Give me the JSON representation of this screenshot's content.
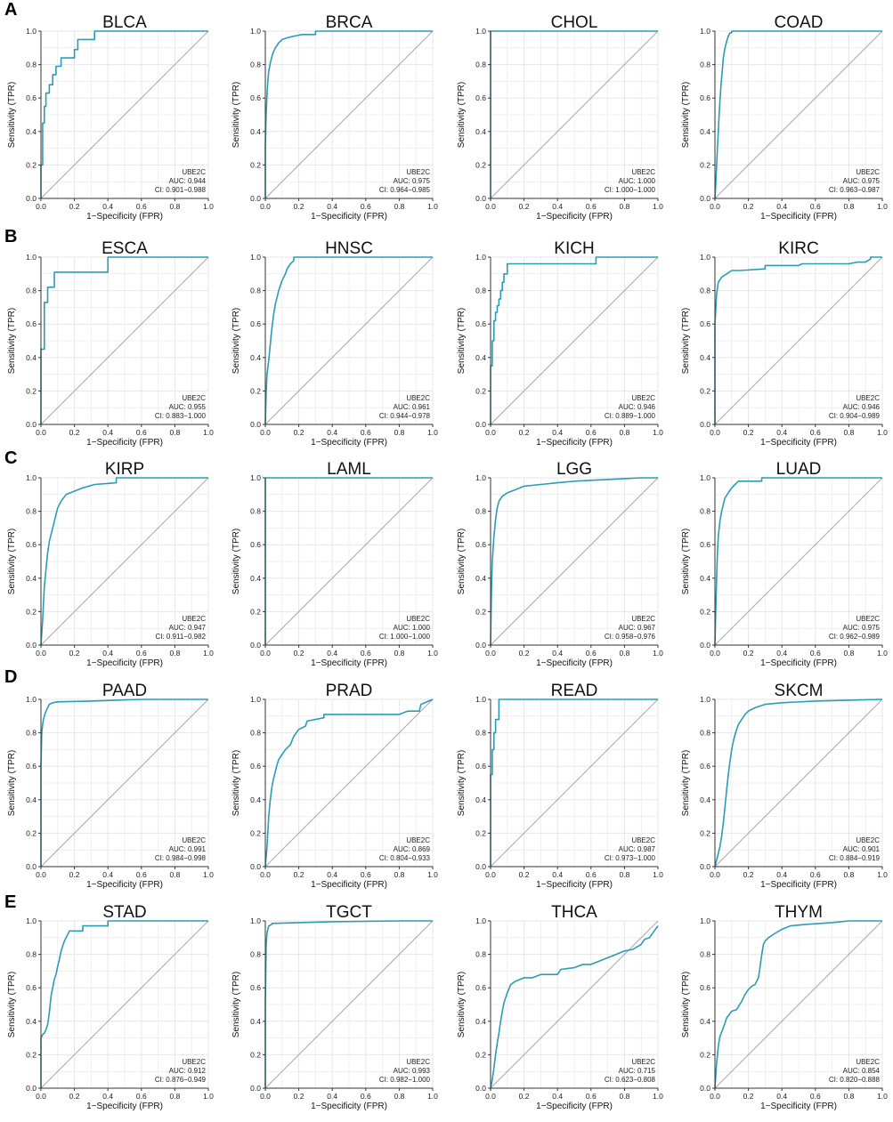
{
  "figure": {
    "row_letters": [
      "A",
      "B",
      "C",
      "D",
      "E"
    ]
  },
  "axis_labels": {
    "xlabel": "1−Specificity (FPR)",
    "ylabel": "Sensitivity (TPR)",
    "ticks": [
      "0.0",
      "0.2",
      "0.4",
      "0.6",
      "0.8",
      "1.0"
    ]
  },
  "colors": {
    "roc": "#2a9db3",
    "diagonal": "#a8a8a8",
    "grid": "#e6e6e6",
    "axis": "#333333"
  },
  "chart_data": [
    {
      "type": "line",
      "title": "BLCA",
      "gene": "UBE2C",
      "auc": "AUC: 0.944",
      "ci": "CI: 0.901−0.988",
      "xlim": [
        0,
        1
      ],
      "ylim": [
        0,
        1
      ],
      "x": [
        0,
        0,
        0.01,
        0.01,
        0.02,
        0.02,
        0.03,
        0.03,
        0.05,
        0.05,
        0.07,
        0.07,
        0.09,
        0.09,
        0.12,
        0.12,
        0.16,
        0.16,
        0.2,
        0.2,
        0.22,
        0.22,
        0.28,
        0.28,
        0.32,
        0.32,
        1
      ],
      "y": [
        0,
        0.2,
        0.2,
        0.45,
        0.45,
        0.55,
        0.55,
        0.63,
        0.63,
        0.68,
        0.68,
        0.74,
        0.74,
        0.79,
        0.79,
        0.84,
        0.84,
        0.84,
        0.84,
        0.89,
        0.89,
        0.95,
        0.95,
        0.95,
        0.95,
        1,
        1
      ]
    },
    {
      "type": "line",
      "title": "BRCA",
      "gene": "UBE2C",
      "auc": "AUC: 0.975",
      "ci": "CI: 0.964−0.985",
      "xlim": [
        0,
        1
      ],
      "ylim": [
        0,
        1
      ],
      "x": [
        0,
        0,
        0.005,
        0.01,
        0.015,
        0.02,
        0.03,
        0.04,
        0.05,
        0.06,
        0.08,
        0.1,
        0.13,
        0.17,
        0.22,
        0.3,
        0.3,
        1
      ],
      "y": [
        0,
        0.3,
        0.5,
        0.62,
        0.7,
        0.76,
        0.81,
        0.85,
        0.88,
        0.9,
        0.93,
        0.95,
        0.96,
        0.97,
        0.98,
        0.98,
        1,
        1
      ]
    },
    {
      "type": "line",
      "title": "CHOL",
      "gene": "UBE2C",
      "auc": "AUC: 1.000",
      "ci": "CI: 1.000−1.000",
      "xlim": [
        0,
        1
      ],
      "ylim": [
        0,
        1
      ],
      "x": [
        0,
        0,
        1
      ],
      "y": [
        0,
        1,
        1
      ]
    },
    {
      "type": "line",
      "title": "COAD",
      "gene": "UBE2C",
      "auc": "AUC: 0.975",
      "ci": "CI: 0.963−0.987",
      "xlim": [
        0,
        1
      ],
      "ylim": [
        0,
        1
      ],
      "x": [
        0,
        0.005,
        0.01,
        0.015,
        0.02,
        0.025,
        0.03,
        0.035,
        0.04,
        0.045,
        0.05,
        0.06,
        0.07,
        0.08,
        0.09,
        0.1,
        0.1,
        1
      ],
      "y": [
        0,
        0.08,
        0.2,
        0.3,
        0.4,
        0.5,
        0.58,
        0.66,
        0.72,
        0.78,
        0.84,
        0.9,
        0.94,
        0.97,
        0.99,
        0.99,
        1,
        1
      ]
    },
    {
      "type": "line",
      "title": "ESCA",
      "gene": "UBE2C",
      "auc": "AUC: 0.955",
      "ci": "CI: 0.883−1.000",
      "xlim": [
        0,
        1
      ],
      "ylim": [
        0,
        1
      ],
      "x": [
        0,
        0,
        0.02,
        0.02,
        0.04,
        0.04,
        0.08,
        0.08,
        0.4,
        0.4,
        1
      ],
      "y": [
        0,
        0.45,
        0.45,
        0.73,
        0.73,
        0.82,
        0.82,
        0.91,
        0.91,
        1,
        1
      ]
    },
    {
      "type": "line",
      "title": "HNSC",
      "gene": "UBE2C",
      "auc": "AUC: 0.961",
      "ci": "CI: 0.944−0.978",
      "xlim": [
        0,
        1
      ],
      "ylim": [
        0,
        1
      ],
      "x": [
        0,
        0.005,
        0.01,
        0.02,
        0.03,
        0.04,
        0.05,
        0.06,
        0.07,
        0.08,
        0.1,
        0.12,
        0.13,
        0.15,
        0.17,
        0.17,
        1
      ],
      "y": [
        0,
        0.18,
        0.3,
        0.38,
        0.48,
        0.58,
        0.66,
        0.72,
        0.76,
        0.8,
        0.86,
        0.9,
        0.93,
        0.96,
        0.98,
        1,
        1
      ]
    },
    {
      "type": "line",
      "title": "KICH",
      "gene": "UBE2C",
      "auc": "AUC: 0.946",
      "ci": "CI: 0.889−1.000",
      "xlim": [
        0,
        1
      ],
      "ylim": [
        0,
        1
      ],
      "x": [
        0,
        0,
        0.01,
        0.01,
        0.02,
        0.02,
        0.03,
        0.03,
        0.04,
        0.04,
        0.05,
        0.05,
        0.06,
        0.06,
        0.07,
        0.07,
        0.08,
        0.08,
        0.1,
        0.1,
        0.63,
        0.63,
        1
      ],
      "y": [
        0,
        0.35,
        0.35,
        0.5,
        0.5,
        0.62,
        0.62,
        0.67,
        0.67,
        0.71,
        0.71,
        0.75,
        0.75,
        0.8,
        0.8,
        0.85,
        0.85,
        0.9,
        0.9,
        0.96,
        0.96,
        1,
        1
      ]
    },
    {
      "type": "line",
      "title": "KIRC",
      "gene": "UBE2C",
      "auc": "AUC: 0.946",
      "ci": "CI: 0.904−0.989",
      "xlim": [
        0,
        1
      ],
      "ylim": [
        0,
        1
      ],
      "x": [
        0,
        0,
        0.01,
        0.02,
        0.04,
        0.07,
        0.1,
        0.15,
        0.3,
        0.3,
        0.5,
        0.52,
        0.8,
        0.85,
        0.9,
        0.93,
        0.93,
        1
      ],
      "y": [
        0,
        0.6,
        0.78,
        0.85,
        0.88,
        0.9,
        0.92,
        0.92,
        0.93,
        0.95,
        0.95,
        0.96,
        0.96,
        0.97,
        0.97,
        0.99,
        1,
        1
      ]
    },
    {
      "type": "line",
      "title": "KIRP",
      "gene": "UBE2C",
      "auc": "AUC: 0.947",
      "ci": "CI: 0.911−0.982",
      "xlim": [
        0,
        1
      ],
      "ylim": [
        0,
        1
      ],
      "x": [
        0,
        0.01,
        0.02,
        0.03,
        0.04,
        0.05,
        0.06,
        0.07,
        0.08,
        0.09,
        0.1,
        0.12,
        0.15,
        0.2,
        0.25,
        0.32,
        0.45,
        0.45,
        1
      ],
      "y": [
        0,
        0.15,
        0.35,
        0.45,
        0.55,
        0.62,
        0.66,
        0.7,
        0.74,
        0.78,
        0.82,
        0.86,
        0.9,
        0.92,
        0.94,
        0.96,
        0.97,
        1,
        1
      ]
    },
    {
      "type": "line",
      "title": "LAML",
      "gene": "UBE2C",
      "auc": "AUC: 1.000",
      "ci": "CI: 1.000−1.000",
      "xlim": [
        0,
        1
      ],
      "ylim": [
        0,
        1
      ],
      "x": [
        0,
        0,
        1
      ],
      "y": [
        0,
        1,
        1
      ]
    },
    {
      "type": "line",
      "title": "LGG",
      "gene": "UBE2C",
      "auc": "AUC: 0.967",
      "ci": "CI: 0.958−0.976",
      "xlim": [
        0,
        1
      ],
      "ylim": [
        0,
        1
      ],
      "x": [
        0,
        0.005,
        0.01,
        0.02,
        0.03,
        0.04,
        0.05,
        0.07,
        0.1,
        0.15,
        0.2,
        0.3,
        0.4,
        0.5,
        0.6,
        0.7,
        0.8,
        0.9,
        1
      ],
      "y": [
        0,
        0.3,
        0.5,
        0.65,
        0.75,
        0.82,
        0.86,
        0.89,
        0.91,
        0.93,
        0.95,
        0.96,
        0.97,
        0.98,
        0.985,
        0.99,
        0.995,
        1,
        1
      ]
    },
    {
      "type": "line",
      "title": "LUAD",
      "gene": "UBE2C",
      "auc": "AUC: 0.975",
      "ci": "CI: 0.962−0.989",
      "xlim": [
        0,
        1
      ],
      "ylim": [
        0,
        1
      ],
      "x": [
        0,
        0.005,
        0.01,
        0.015,
        0.02,
        0.03,
        0.04,
        0.05,
        0.06,
        0.08,
        0.1,
        0.12,
        0.14,
        0.28,
        0.28,
        1
      ],
      "y": [
        0,
        0.2,
        0.4,
        0.55,
        0.65,
        0.74,
        0.8,
        0.84,
        0.88,
        0.91,
        0.94,
        0.96,
        0.98,
        0.98,
        1,
        1
      ]
    },
    {
      "type": "line",
      "title": "PAAD",
      "gene": "UBE2C",
      "auc": "AUC: 0.991",
      "ci": "CI: 0.984−0.998",
      "xlim": [
        0,
        1
      ],
      "ylim": [
        0,
        1
      ],
      "x": [
        0,
        0,
        0.005,
        0.01,
        0.015,
        0.02,
        0.03,
        0.04,
        0.05,
        0.07,
        0.1,
        0.3,
        0.6,
        1
      ],
      "y": [
        0,
        0.6,
        0.8,
        0.85,
        0.88,
        0.9,
        0.93,
        0.95,
        0.97,
        0.98,
        0.985,
        0.99,
        1,
        1
      ]
    },
    {
      "type": "line",
      "title": "PRAD",
      "gene": "UBE2C",
      "auc": "AUC: 0.869",
      "ci": "CI: 0.804−0.933",
      "xlim": [
        0,
        1
      ],
      "ylim": [
        0,
        1
      ],
      "x": [
        0,
        0.01,
        0.02,
        0.03,
        0.04,
        0.05,
        0.06,
        0.07,
        0.08,
        0.1,
        0.12,
        0.15,
        0.17,
        0.2,
        0.24,
        0.25,
        0.35,
        0.35,
        0.8,
        0.85,
        0.92,
        0.93,
        1
      ],
      "y": [
        0,
        0.12,
        0.3,
        0.4,
        0.48,
        0.53,
        0.57,
        0.61,
        0.64,
        0.67,
        0.7,
        0.73,
        0.78,
        0.82,
        0.84,
        0.87,
        0.89,
        0.91,
        0.91,
        0.93,
        0.93,
        0.97,
        1
      ]
    },
    {
      "type": "line",
      "title": "READ",
      "gene": "UBE2C",
      "auc": "AUC: 0.987",
      "ci": "CI: 0.973−1.000",
      "xlim": [
        0,
        1
      ],
      "ylim": [
        0,
        1
      ],
      "x": [
        0,
        0,
        0.01,
        0.01,
        0.02,
        0.02,
        0.03,
        0.03,
        0.05,
        0.05,
        1
      ],
      "y": [
        0,
        0.55,
        0.55,
        0.7,
        0.7,
        0.8,
        0.8,
        0.88,
        0.88,
        1,
        1
      ]
    },
    {
      "type": "line",
      "title": "SKCM",
      "gene": "UBE2C",
      "auc": "AUC: 0.901",
      "ci": "CI: 0.884−0.919",
      "xlim": [
        0,
        1
      ],
      "ylim": [
        0,
        1
      ],
      "x": [
        0,
        0.01,
        0.02,
        0.03,
        0.04,
        0.05,
        0.06,
        0.07,
        0.08,
        0.09,
        0.1,
        0.11,
        0.12,
        0.13,
        0.14,
        0.16,
        0.18,
        0.2,
        0.24,
        0.3,
        0.4,
        0.6,
        0.8,
        1
      ],
      "y": [
        0,
        0.04,
        0.08,
        0.12,
        0.18,
        0.26,
        0.36,
        0.46,
        0.55,
        0.63,
        0.7,
        0.75,
        0.79,
        0.82,
        0.85,
        0.88,
        0.91,
        0.93,
        0.95,
        0.97,
        0.98,
        0.99,
        0.995,
        1
      ]
    },
    {
      "type": "line",
      "title": "STAD",
      "gene": "UBE2C",
      "auc": "AUC: 0.912",
      "ci": "CI: 0.876−0.949",
      "xlim": [
        0,
        1
      ],
      "ylim": [
        0,
        1
      ],
      "x": [
        0,
        0,
        0.01,
        0.02,
        0.03,
        0.04,
        0.05,
        0.06,
        0.07,
        0.08,
        0.09,
        0.1,
        0.11,
        0.12,
        0.13,
        0.14,
        0.15,
        0.17,
        0.2,
        0.25,
        0.25,
        0.4,
        0.4,
        1
      ],
      "y": [
        0,
        0.3,
        0.32,
        0.33,
        0.35,
        0.38,
        0.45,
        0.55,
        0.6,
        0.65,
        0.68,
        0.73,
        0.77,
        0.82,
        0.85,
        0.88,
        0.9,
        0.94,
        0.94,
        0.94,
        0.97,
        0.97,
        1,
        1
      ]
    },
    {
      "type": "line",
      "title": "TGCT",
      "gene": "UBE2C",
      "auc": "AUC: 0.993",
      "ci": "CI: 0.982−1.000",
      "xlim": [
        0,
        1
      ],
      "ylim": [
        0,
        1
      ],
      "x": [
        0,
        0,
        0.005,
        0.01,
        0.02,
        0.04,
        0.04,
        0.2,
        0.4,
        0.8,
        1
      ],
      "y": [
        0,
        0.5,
        0.85,
        0.93,
        0.97,
        0.98,
        0.985,
        0.99,
        0.995,
        1,
        1
      ]
    },
    {
      "type": "line",
      "title": "THCA",
      "gene": "UBE2C",
      "auc": "AUC: 0.715",
      "ci": "CI: 0.623−0.808",
      "xlim": [
        0,
        1
      ],
      "ylim": [
        0,
        1
      ],
      "x": [
        0,
        0.01,
        0.02,
        0.03,
        0.04,
        0.05,
        0.06,
        0.07,
        0.08,
        0.09,
        0.1,
        0.12,
        0.15,
        0.2,
        0.25,
        0.3,
        0.4,
        0.42,
        0.5,
        0.55,
        0.6,
        0.65,
        0.7,
        0.75,
        0.8,
        0.85,
        0.9,
        0.92,
        0.95,
        0.97,
        1
      ],
      "y": [
        0,
        0.05,
        0.12,
        0.2,
        0.27,
        0.33,
        0.4,
        0.46,
        0.51,
        0.54,
        0.57,
        0.62,
        0.64,
        0.66,
        0.66,
        0.68,
        0.68,
        0.71,
        0.72,
        0.74,
        0.74,
        0.76,
        0.78,
        0.8,
        0.82,
        0.83,
        0.86,
        0.89,
        0.9,
        0.93,
        0.97
      ]
    },
    {
      "type": "line",
      "title": "THYM",
      "gene": "UBE2C",
      "auc": "AUC: 0.854",
      "ci": "CI: 0.820−0.888",
      "xlim": [
        0,
        1
      ],
      "ylim": [
        0,
        1
      ],
      "x": [
        0,
        0.01,
        0.02,
        0.03,
        0.05,
        0.07,
        0.1,
        0.13,
        0.16,
        0.18,
        0.2,
        0.22,
        0.24,
        0.26,
        0.27,
        0.28,
        0.29,
        0.3,
        0.32,
        0.35,
        0.4,
        0.45,
        0.55,
        0.7,
        0.8,
        1
      ],
      "y": [
        0,
        0.15,
        0.25,
        0.31,
        0.36,
        0.42,
        0.46,
        0.47,
        0.52,
        0.56,
        0.59,
        0.61,
        0.62,
        0.66,
        0.73,
        0.8,
        0.86,
        0.88,
        0.9,
        0.92,
        0.95,
        0.97,
        0.98,
        0.99,
        1,
        1
      ]
    }
  ]
}
